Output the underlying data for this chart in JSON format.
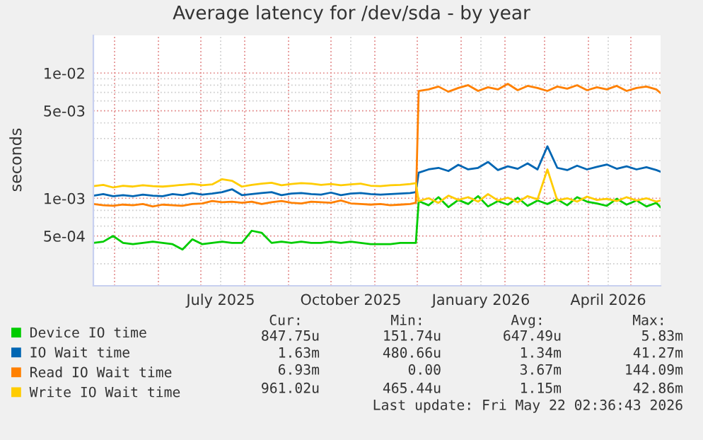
{
  "chart_data": {
    "type": "line",
    "title": "Average latency for /dev/sda - by year",
    "ylabel": "seconds",
    "x": [
      "2025-04-16",
      "2025-04-23",
      "2025-04-30",
      "2025-05-07",
      "2025-05-14",
      "2025-05-21",
      "2025-05-28",
      "2025-06-04",
      "2025-06-11",
      "2025-06-18",
      "2025-06-25",
      "2025-07-02",
      "2025-07-09",
      "2025-07-16",
      "2025-07-23",
      "2025-07-30",
      "2025-08-06",
      "2025-08-13",
      "2025-08-20",
      "2025-08-27",
      "2025-09-03",
      "2025-09-10",
      "2025-09-17",
      "2025-09-24",
      "2025-10-01",
      "2025-10-08",
      "2025-10-15",
      "2025-10-22",
      "2025-10-29",
      "2025-11-05",
      "2025-11-12",
      "2025-11-19",
      "2025-11-26",
      "2025-11-30",
      "2025-12-02",
      "2025-12-09",
      "2025-12-16",
      "2025-12-23",
      "2025-12-30",
      "2026-01-06",
      "2026-01-13",
      "2026-01-20",
      "2026-01-27",
      "2026-02-03",
      "2026-02-10",
      "2026-02-17",
      "2026-02-24",
      "2026-03-03",
      "2026-03-10",
      "2026-03-17",
      "2026-03-24",
      "2026-03-31",
      "2026-04-07",
      "2026-04-14",
      "2026-04-21",
      "2026-04-28",
      "2026-05-05",
      "2026-05-12",
      "2026-05-19",
      "2026-05-22"
    ],
    "series": [
      {
        "name": "Device IO time",
        "color": "#00cc00",
        "values": [
          0.00044,
          0.00045,
          0.0005,
          0.00044,
          0.00043,
          0.00044,
          0.00045,
          0.00044,
          0.00043,
          0.00039,
          0.00047,
          0.00043,
          0.00044,
          0.00045,
          0.00044,
          0.00044,
          0.00055,
          0.00053,
          0.00044,
          0.00045,
          0.00044,
          0.00045,
          0.00044,
          0.00044,
          0.00045,
          0.00044,
          0.00045,
          0.00044,
          0.00043,
          0.00043,
          0.00043,
          0.00044,
          0.00044,
          0.00044,
          0.00095,
          0.00088,
          0.00102,
          0.00085,
          0.00097,
          0.0009,
          0.00104,
          0.00086,
          0.00095,
          0.00089,
          0.00101,
          0.00087,
          0.00096,
          0.0009,
          0.00098,
          0.00088,
          0.00102,
          0.00094,
          0.00091,
          0.00087,
          0.00099,
          0.00089,
          0.00096,
          0.00086,
          0.00092,
          0.000848
        ]
      },
      {
        "name": "IO Wait time",
        "color": "#0066b3",
        "values": [
          0.00105,
          0.00108,
          0.00104,
          0.00106,
          0.00104,
          0.00107,
          0.00105,
          0.00104,
          0.00108,
          0.00106,
          0.0011,
          0.00107,
          0.00109,
          0.00112,
          0.00118,
          0.00106,
          0.00108,
          0.0011,
          0.00112,
          0.00106,
          0.00109,
          0.0011,
          0.00108,
          0.00107,
          0.00111,
          0.00106,
          0.00109,
          0.0011,
          0.00108,
          0.00107,
          0.00108,
          0.00109,
          0.0011,
          0.00112,
          0.0016,
          0.0017,
          0.00175,
          0.00165,
          0.00185,
          0.0017,
          0.00175,
          0.00195,
          0.00168,
          0.0018,
          0.00172,
          0.0019,
          0.0017,
          0.0026,
          0.00175,
          0.00168,
          0.00182,
          0.0017,
          0.00178,
          0.00186,
          0.00172,
          0.0018,
          0.0017,
          0.00177,
          0.00168,
          0.00163
        ]
      },
      {
        "name": "Read IO Wait time",
        "color": "#ff8000",
        "values": [
          0.0009,
          0.00088,
          0.00087,
          0.00089,
          0.00088,
          0.0009,
          0.00086,
          0.00089,
          0.00088,
          0.00087,
          0.0009,
          0.00091,
          0.00095,
          0.00093,
          0.00094,
          0.00092,
          0.00094,
          0.0009,
          0.00093,
          0.00095,
          0.00092,
          0.00091,
          0.00094,
          0.00093,
          0.00092,
          0.00096,
          0.00091,
          0.0009,
          0.00089,
          0.0009,
          0.00088,
          0.00089,
          0.0009,
          0.00092,
          0.0072,
          0.0074,
          0.0078,
          0.0071,
          0.0076,
          0.008,
          0.0072,
          0.0077,
          0.0074,
          0.0082,
          0.0073,
          0.0079,
          0.0076,
          0.0072,
          0.0078,
          0.0075,
          0.008,
          0.0073,
          0.0077,
          0.0074,
          0.0079,
          0.0072,
          0.0076,
          0.0078,
          0.0074,
          0.00693
        ]
      },
      {
        "name": "Write IO Wait time",
        "color": "#ffcc00",
        "values": [
          0.00125,
          0.00128,
          0.00122,
          0.00126,
          0.00124,
          0.00127,
          0.00125,
          0.00124,
          0.00126,
          0.00128,
          0.0013,
          0.00127,
          0.00129,
          0.00142,
          0.00138,
          0.00124,
          0.00128,
          0.00131,
          0.00133,
          0.00127,
          0.0013,
          0.00132,
          0.00131,
          0.00128,
          0.0013,
          0.00127,
          0.00129,
          0.00131,
          0.00126,
          0.00125,
          0.00127,
          0.00128,
          0.0013,
          0.00132,
          0.00095,
          0.001,
          0.00092,
          0.00105,
          0.00097,
          0.00102,
          0.00094,
          0.00108,
          0.00096,
          0.00101,
          0.00093,
          0.00104,
          0.00098,
          0.0017,
          0.00096,
          0.001,
          0.00094,
          0.00103,
          0.00097,
          0.00099,
          0.00095,
          0.00102,
          0.00096,
          0.001,
          0.00094,
          0.000961
        ]
      }
    ],
    "log": "y",
    "xlim": [
      "2025-04-16",
      "2026-05-22"
    ],
    "xticks": [
      {
        "value": "2025-05-01",
        "label": null
      },
      {
        "value": "2025-06-01",
        "label": null
      },
      {
        "value": "2025-07-01",
        "label": null
      },
      {
        "value": "2025-07-15",
        "label": "July 2025"
      },
      {
        "value": "2025-08-01",
        "label": null
      },
      {
        "value": "2025-09-01",
        "label": null
      },
      {
        "value": "2025-10-01",
        "label": null
      },
      {
        "value": "2025-10-15",
        "label": "October 2025"
      },
      {
        "value": "2025-11-01",
        "label": null
      },
      {
        "value": "2025-12-01",
        "label": null
      },
      {
        "value": "2026-01-01",
        "label": null
      },
      {
        "value": "2026-01-15",
        "label": "January 2026"
      },
      {
        "value": "2026-02-01",
        "label": null
      },
      {
        "value": "2026-03-01",
        "label": null
      },
      {
        "value": "2026-04-01",
        "label": null
      },
      {
        "value": "2026-04-15",
        "label": "April 2026"
      },
      {
        "value": "2026-05-01",
        "label": null
      }
    ],
    "ylim": [
      0.0002,
      0.02
    ],
    "yticks": [
      {
        "value": 0.0003,
        "label": null
      },
      {
        "value": 0.0004,
        "label": null
      },
      {
        "value": 0.0005,
        "label": "5e-04"
      },
      {
        "value": 0.0006,
        "label": null
      },
      {
        "value": 0.0007,
        "label": null
      },
      {
        "value": 0.0008,
        "label": null
      },
      {
        "value": 0.0009,
        "label": null
      },
      {
        "value": 0.001,
        "label": "1e-03"
      },
      {
        "value": 0.002,
        "label": null
      },
      {
        "value": 0.003,
        "label": null
      },
      {
        "value": 0.004,
        "label": null
      },
      {
        "value": 0.005,
        "label": "5e-03"
      },
      {
        "value": 0.006,
        "label": null
      },
      {
        "value": 0.007,
        "label": null
      },
      {
        "value": 0.008,
        "label": null
      },
      {
        "value": 0.009,
        "label": null
      },
      {
        "value": 0.01,
        "label": "1e-02"
      }
    ],
    "grid": true,
    "legend": "bottom",
    "marker": "none",
    "line_style": "solid",
    "annotations": [
      "Cur:",
      "Min:",
      "Avg:",
      "Max:",
      "847.75u",
      "151.74u",
      "647.49u",
      "5.83m",
      "1.63m",
      "480.66u",
      "1.34m",
      "41.27m",
      "6.93m",
      "0.00",
      "3.67m",
      "144.09m",
      "961.02u",
      "465.44u",
      "1.15m",
      "42.86m",
      "Last update: Fri May 22 02:36:43 2026"
    ]
  }
}
